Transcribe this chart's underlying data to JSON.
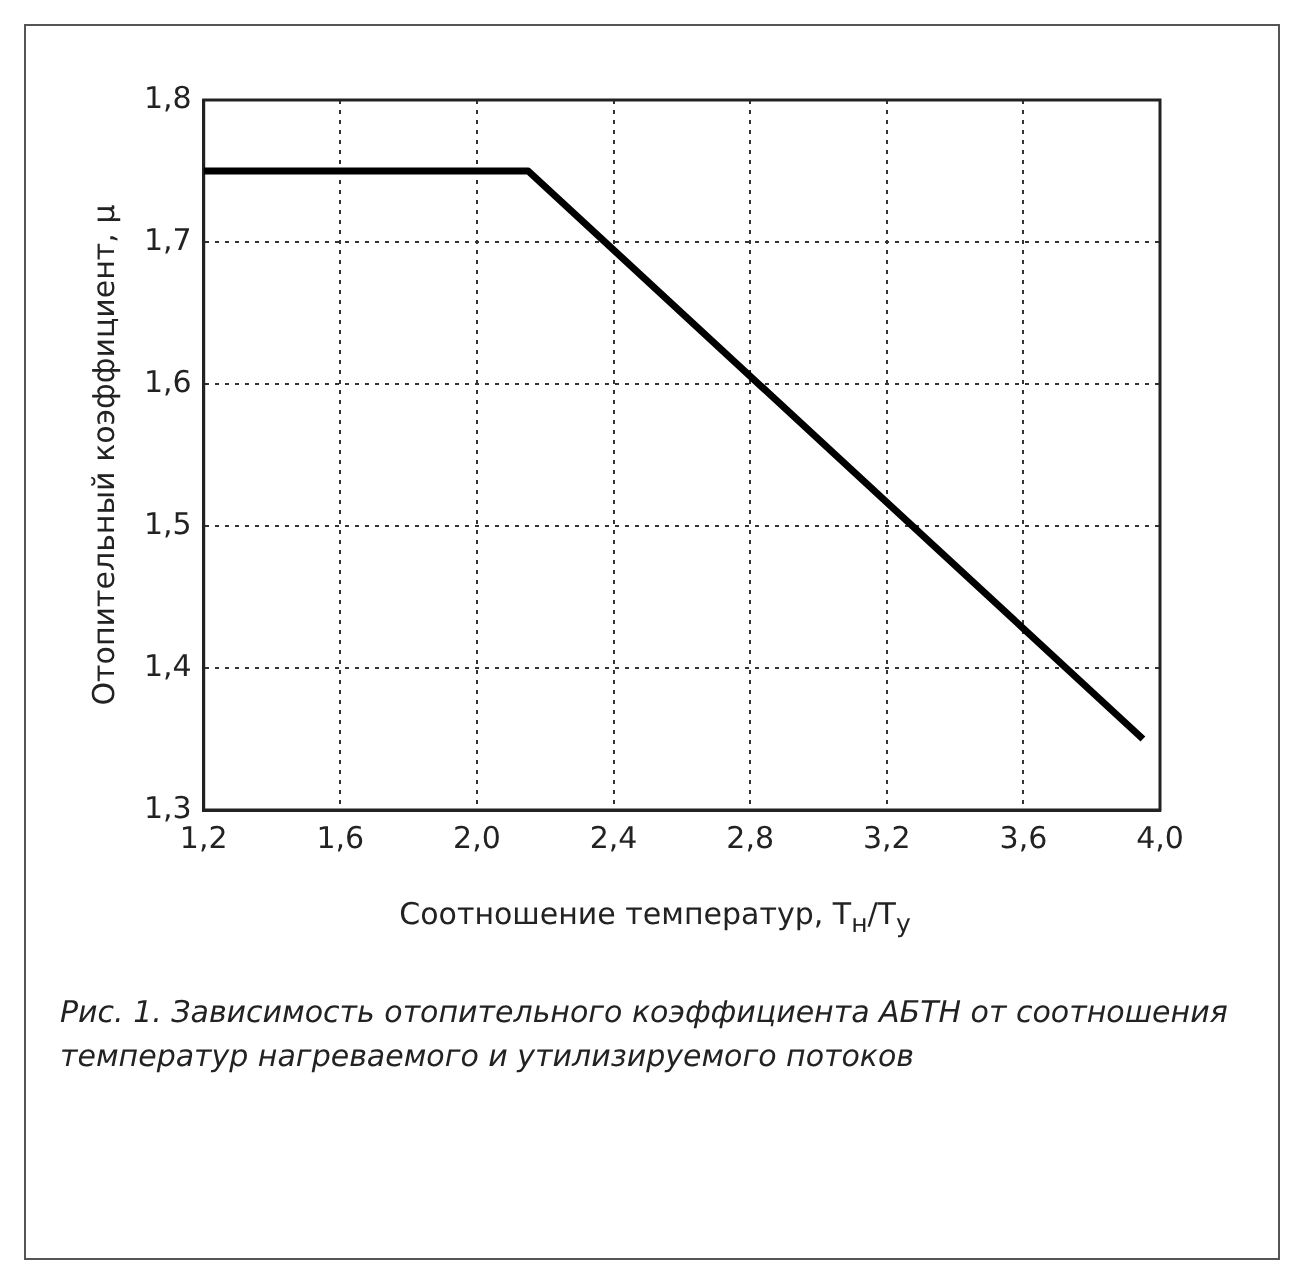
{
  "chart_data": {
    "type": "line",
    "xlabel": "Соотношение температур, T$_{н}$/T$_{у}$",
    "ylabel": "Отопительный коэффициент, μ",
    "x": [
      1.2,
      2.15,
      3.95
    ],
    "series": [
      {
        "color": "#000000",
        "values": [
          1.75,
          1.75,
          1.35
        ]
      }
    ],
    "xlim": [
      1.2,
      4.0
    ],
    "xticks": [
      {
        "value": 1.2,
        "label": "1,2"
      },
      {
        "value": 1.6,
        "label": "1,6"
      },
      {
        "value": 2.0,
        "label": "2,0"
      },
      {
        "value": 2.4,
        "label": "2,4"
      },
      {
        "value": 2.8,
        "label": "2,8"
      },
      {
        "value": 3.2,
        "label": "3,2"
      },
      {
        "value": 3.6,
        "label": "3,6"
      },
      {
        "value": 4.0,
        "label": "4,0"
      }
    ],
    "ylim": [
      1.3,
      1.8
    ],
    "yticks": [
      {
        "value": 1.3,
        "label": "1,3"
      },
      {
        "value": 1.4,
        "label": "1,4"
      },
      {
        "value": 1.5,
        "label": "1,5"
      },
      {
        "value": 1.6,
        "label": "1,6"
      },
      {
        "value": 1.7,
        "label": "1,7"
      },
      {
        "value": 1.8,
        "label": "1,8"
      }
    ],
    "grid": true,
    "marker": "none",
    "line_style": "solid",
    "legend": false,
    "annotations": [
      "Рис. 1. Зависимость отопительного коэффициента АБТН от соотношения температур нагреваемого и утилизируемого потоков"
    ]
  }
}
